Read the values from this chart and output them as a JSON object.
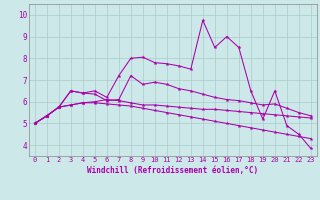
{
  "xlabel": "Windchill (Refroidissement éolien,°C)",
  "xlim": [
    -0.5,
    23.5
  ],
  "ylim": [
    3.5,
    10.5
  ],
  "xticks": [
    0,
    1,
    2,
    3,
    4,
    5,
    6,
    7,
    8,
    9,
    10,
    11,
    12,
    13,
    14,
    15,
    16,
    17,
    18,
    19,
    20,
    21,
    22,
    23
  ],
  "yticks": [
    4,
    5,
    6,
    7,
    8,
    9,
    10
  ],
  "bg_color": "#cce8e8",
  "grid_color": "#aacccc",
  "line_color": "#aa00aa",
  "line1_x": [
    0,
    1,
    2,
    3,
    4,
    5,
    6,
    7,
    8,
    9,
    10,
    11,
    12,
    13,
    14,
    15,
    16,
    17,
    18,
    19,
    20,
    21,
    22,
    23
  ],
  "line1_y": [
    5.0,
    5.35,
    5.75,
    6.5,
    6.4,
    6.5,
    6.2,
    7.2,
    8.0,
    8.05,
    7.8,
    7.75,
    7.65,
    7.5,
    9.75,
    8.5,
    9.0,
    8.5,
    6.5,
    5.2,
    6.5,
    4.9,
    4.5,
    3.85
  ],
  "line2_x": [
    0,
    1,
    2,
    3,
    4,
    5,
    6,
    7,
    8,
    9,
    10,
    11,
    12,
    13,
    14,
    15,
    16,
    17,
    18,
    19,
    20,
    21,
    22,
    23
  ],
  "line2_y": [
    5.0,
    5.35,
    5.75,
    6.5,
    6.4,
    6.35,
    6.05,
    6.1,
    7.2,
    6.8,
    6.9,
    6.8,
    6.6,
    6.5,
    6.35,
    6.2,
    6.1,
    6.05,
    5.95,
    5.85,
    5.9,
    5.7,
    5.5,
    5.35
  ],
  "line3_x": [
    0,
    1,
    2,
    3,
    4,
    5,
    6,
    7,
    8,
    9,
    10,
    11,
    12,
    13,
    14,
    15,
    16,
    17,
    18,
    19,
    20,
    21,
    22,
    23
  ],
  "line3_y": [
    5.0,
    5.35,
    5.75,
    5.85,
    5.95,
    6.0,
    6.1,
    6.05,
    5.95,
    5.85,
    5.85,
    5.8,
    5.75,
    5.7,
    5.65,
    5.65,
    5.6,
    5.55,
    5.5,
    5.45,
    5.4,
    5.35,
    5.3,
    5.25
  ],
  "line4_x": [
    0,
    1,
    2,
    3,
    4,
    5,
    6,
    7,
    8,
    9,
    10,
    11,
    12,
    13,
    14,
    15,
    16,
    17,
    18,
    19,
    20,
    21,
    22,
    23
  ],
  "line4_y": [
    5.0,
    5.35,
    5.75,
    5.85,
    5.95,
    5.95,
    5.9,
    5.85,
    5.8,
    5.7,
    5.6,
    5.5,
    5.4,
    5.3,
    5.2,
    5.1,
    5.0,
    4.9,
    4.8,
    4.7,
    4.6,
    4.5,
    4.4,
    4.3
  ],
  "tick_fontsize": 5,
  "label_fontsize": 5.5
}
